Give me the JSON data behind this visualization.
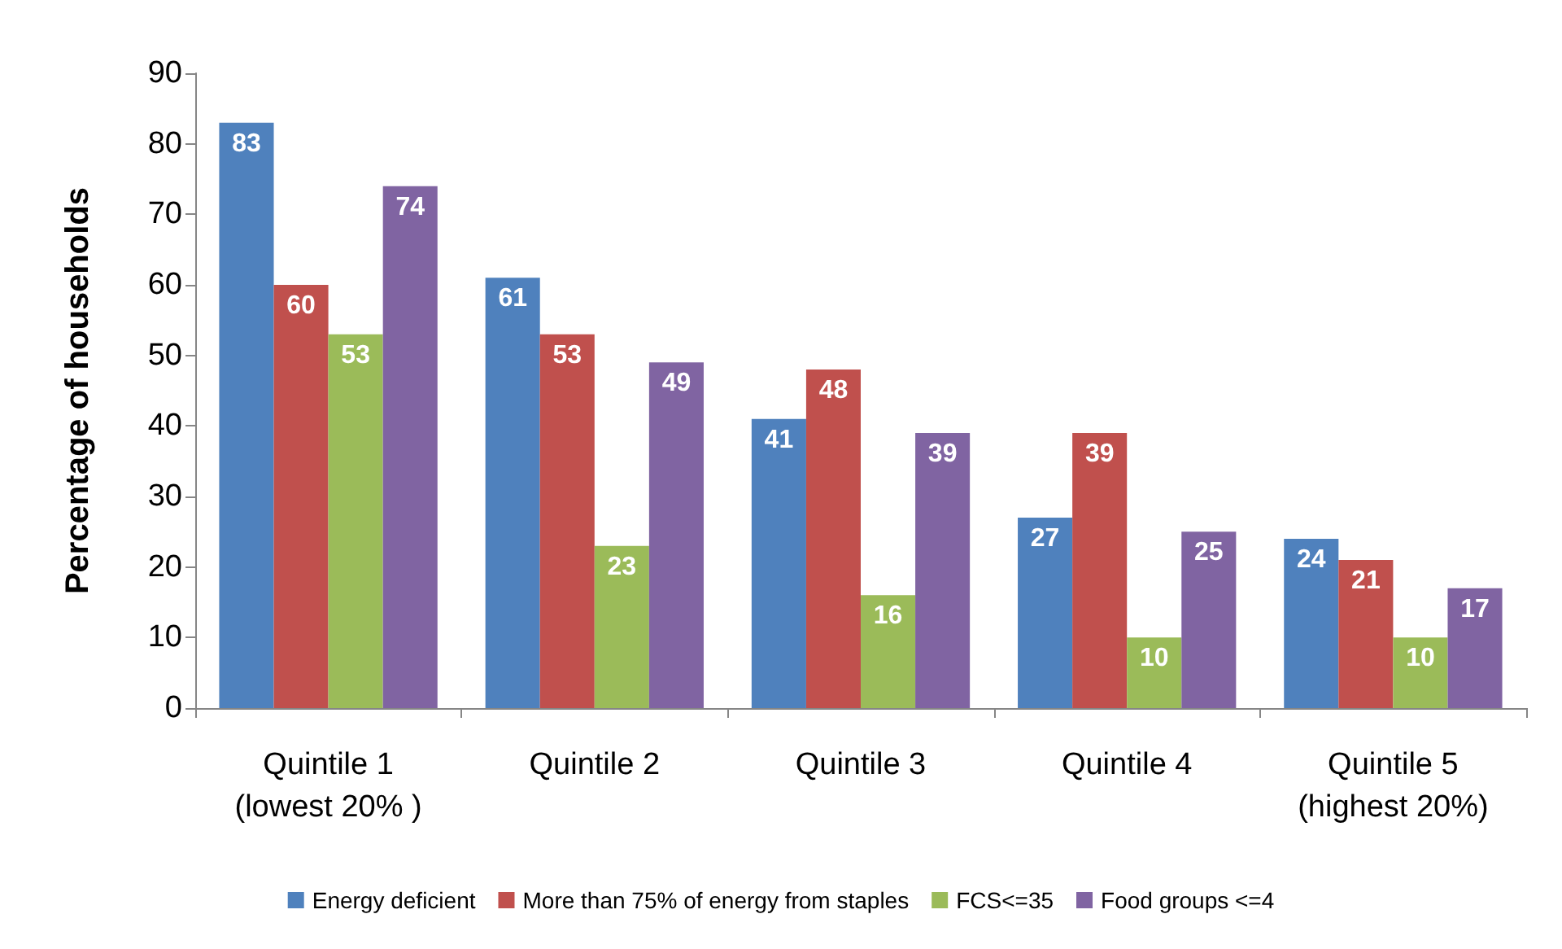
{
  "chart_data": {
    "type": "bar",
    "ylabel": "Percentage of households",
    "categories": [
      "Quintile 1\n(lowest 20% )",
      "Quintile 2",
      "Quintile 3",
      "Quintile 4",
      "Quintile 5\n(highest 20%)"
    ],
    "series": [
      {
        "name": "Energy deficient",
        "color": "#4f81bd",
        "values": [
          83,
          61,
          41,
          27,
          24
        ]
      },
      {
        "name": "More than 75% of energy from staples",
        "color": "#c0504d",
        "values": [
          60,
          53,
          48,
          39,
          21
        ]
      },
      {
        "name": "FCS<=35",
        "color": "#9bbb59",
        "values": [
          53,
          23,
          16,
          10,
          10
        ]
      },
      {
        "name": "Food groups <=4",
        "color": "#8064a2",
        "values": [
          74,
          49,
          39,
          25,
          17
        ]
      }
    ],
    "ylim": [
      0,
      90
    ],
    "yticks": [
      0,
      10,
      20,
      30,
      40,
      50,
      60,
      70,
      80,
      90
    ],
    "data_labels": true,
    "grid": false,
    "legend": "bottom"
  }
}
